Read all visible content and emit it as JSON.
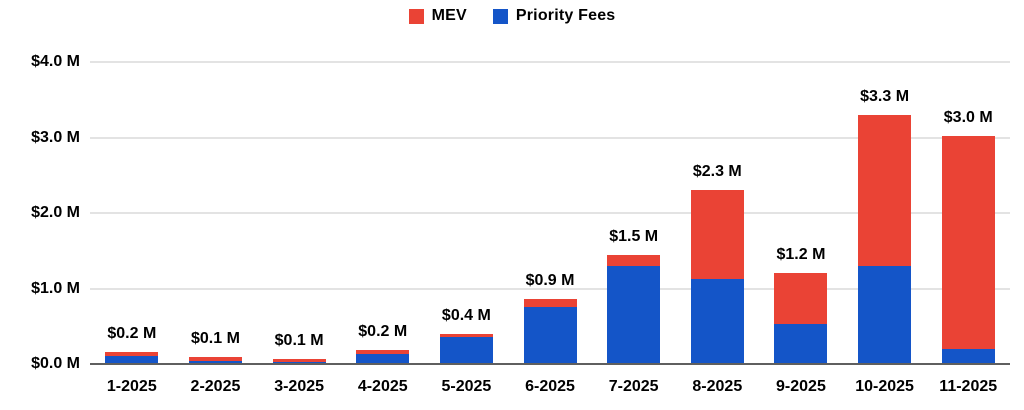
{
  "chart_data": {
    "type": "bar",
    "stacked": true,
    "title": "",
    "xlabel": "",
    "ylabel": "",
    "ylim": [
      0,
      4.0
    ],
    "grid": true,
    "legend_position": "top",
    "categories": [
      "1-2025",
      "2-2025",
      "3-2025",
      "4-2025",
      "5-2025",
      "6-2025",
      "7-2025",
      "8-2025",
      "9-2025",
      "10-2025",
      "11-2025"
    ],
    "series": [
      {
        "name": "MEV",
        "color": "#EA4335",
        "values": [
          0.05,
          0.05,
          0.04,
          0.06,
          0.04,
          0.1,
          0.15,
          1.17,
          0.67,
          2.0,
          2.82
        ]
      },
      {
        "name": "Priority Fees",
        "color": "#1455C8",
        "values": [
          0.11,
          0.04,
          0.03,
          0.13,
          0.36,
          0.76,
          1.3,
          1.13,
          0.53,
          1.3,
          0.2
        ]
      }
    ],
    "totals": [
      0.2,
      0.1,
      0.1,
      0.2,
      0.4,
      0.9,
      1.5,
      2.3,
      1.2,
      3.3,
      3.0
    ],
    "bar_labels": [
      "$0.2 M",
      "$0.1 M",
      "$0.1 M",
      "$0.2 M",
      "$0.4 M",
      "$0.9 M",
      "$1.5 M",
      "$2.3 M",
      "$1.2 M",
      "$3.3 M",
      "$3.0 M"
    ],
    "y_ticks": [
      {
        "label": "$4.0 M",
        "value": 4.0
      },
      {
        "label": "$3.0 M",
        "value": 3.0
      },
      {
        "label": "$2.0 M",
        "value": 2.0
      },
      {
        "label": "$1.0 M",
        "value": 1.0
      },
      {
        "label": "$0.0 M",
        "value": 0.0
      }
    ],
    "gridline_color": "#e3e3e3",
    "axis_line_color": "#5f5f5f",
    "label_color": "#000000"
  }
}
